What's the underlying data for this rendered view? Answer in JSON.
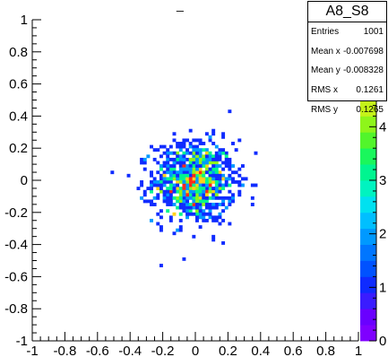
{
  "stats": {
    "title": "A8_S8",
    "rows": [
      {
        "label": "Entries",
        "value": "1001"
      },
      {
        "label": "Mean x",
        "value": "-0.007698"
      },
      {
        "label": "Mean y",
        "value": "-0.008328"
      },
      {
        "label": "RMS x",
        "value": "0.1261"
      },
      {
        "label": "RMS y",
        "value": "0.1265"
      }
    ]
  },
  "title_fragment": "_",
  "chart_data": {
    "type": "heatmap",
    "title": "A8_S8",
    "xlabel": "",
    "ylabel": "",
    "xlim": [
      -1,
      1
    ],
    "ylim": [
      -1,
      1
    ],
    "zlim": [
      0,
      6
    ],
    "bins_x": 100,
    "bins_y": 100,
    "bin_width": 0.02,
    "x_ticks": [
      "-1",
      "-0.8",
      "-0.6",
      "-0.4",
      "-0.2",
      "0",
      "0.2",
      "0.4",
      "0.6",
      "0.8",
      "1"
    ],
    "y_ticks": [
      "-1",
      "-0.8",
      "-0.6",
      "-0.4",
      "-0.2",
      "0",
      "0.2",
      "0.4",
      "0.6",
      "0.8",
      "1"
    ],
    "z_ticks": [
      "0",
      "1",
      "2",
      "3",
      "4",
      "5",
      "6"
    ],
    "grid": false,
    "palette": [
      "#7f00ff",
      "#6a00ff",
      "#3a1cff",
      "#0f2bff",
      "#0052ff",
      "#0076ff",
      "#0099ff",
      "#00bfff",
      "#00e1f0",
      "#00f3c0",
      "#00f590",
      "#1af75c",
      "#52f52b",
      "#8ef51a",
      "#c4f31a",
      "#edf11a",
      "#ffd21a",
      "#ff9f1a",
      "#ff6a1a",
      "#ff2a1a"
    ],
    "seed": 12345,
    "entries": 1001,
    "mean_x": -0.007698,
    "mean_y": -0.008328,
    "rms_x": 0.1261,
    "rms_y": 0.1265
  }
}
